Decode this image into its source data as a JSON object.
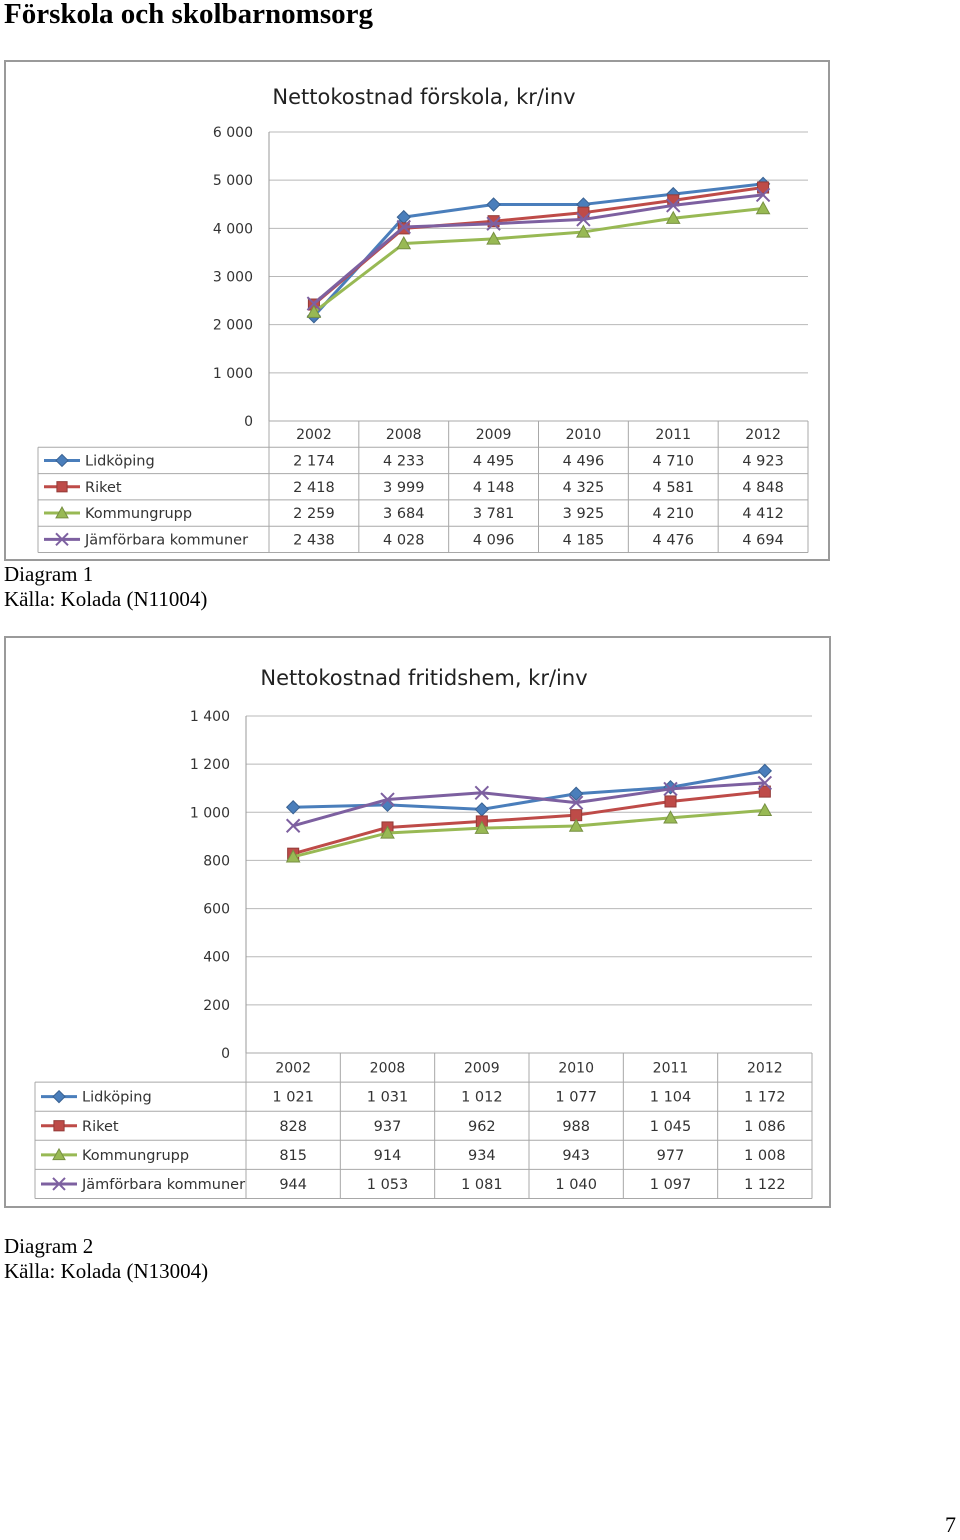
{
  "page": {
    "heading": "Förskola och skolbarnomsorg",
    "page_number": "7"
  },
  "diagram1": {
    "caption_label": "Diagram 1",
    "caption_source": "Källa: Kolada (N11004)"
  },
  "diagram2": {
    "caption_label": "Diagram 2",
    "caption_source": "Källa: Kolada (N13004)"
  },
  "chart_data": [
    {
      "type": "line",
      "title": "Nettokostnad förskola, kr/inv",
      "xlabel": "",
      "ylabel": "",
      "categories": [
        "2002",
        "2008",
        "2009",
        "2010",
        "2011",
        "2012"
      ],
      "y_ticks": [
        "0",
        "1 000",
        "2 000",
        "3 000",
        "4 000",
        "5 000",
        "6 000"
      ],
      "ylim": [
        0,
        6000
      ],
      "grid": true,
      "legend": "data-table",
      "series": [
        {
          "name": "Lidköping",
          "marker": "diamond",
          "color": "#4a7ebb",
          "values": [
            2174,
            4233,
            4495,
            4496,
            4710,
            4923
          ],
          "labels": [
            "2 174",
            "4 233",
            "4 495",
            "4 496",
            "4 710",
            "4 923"
          ]
        },
        {
          "name": "Riket",
          "marker": "square",
          "color": "#be4b48",
          "values": [
            2418,
            3999,
            4148,
            4325,
            4581,
            4848
          ],
          "labels": [
            "2 418",
            "3 999",
            "4 148",
            "4 325",
            "4 581",
            "4 848"
          ]
        },
        {
          "name": "Kommungrupp",
          "marker": "triangle",
          "color": "#98b954",
          "values": [
            2259,
            3684,
            3781,
            3925,
            4210,
            4412
          ],
          "labels": [
            "2 259",
            "3 684",
            "3 781",
            "3 925",
            "4 210",
            "4 412"
          ]
        },
        {
          "name": "Jämförbara kommuner",
          "marker": "x",
          "color": "#7d60a0",
          "values": [
            2438,
            4028,
            4096,
            4185,
            4476,
            4694
          ],
          "labels": [
            "2 438",
            "4 028",
            "4 096",
            "4 185",
            "4 476",
            "4 694"
          ]
        }
      ]
    },
    {
      "type": "line",
      "title": "Nettokostnad fritidshem, kr/inv",
      "xlabel": "",
      "ylabel": "",
      "categories": [
        "2002",
        "2008",
        "2009",
        "2010",
        "2011",
        "2012"
      ],
      "y_ticks": [
        "0",
        "200",
        "400",
        "600",
        "800",
        "1 000",
        "1 200",
        "1 400"
      ],
      "ylim": [
        0,
        1400
      ],
      "grid": true,
      "legend": "data-table",
      "series": [
        {
          "name": "Lidköping",
          "marker": "diamond",
          "color": "#4a7ebb",
          "values": [
            1021,
            1031,
            1012,
            1077,
            1104,
            1172
          ],
          "labels": [
            "1 021",
            "1 031",
            "1 012",
            "1 077",
            "1 104",
            "1 172"
          ]
        },
        {
          "name": "Riket",
          "marker": "square",
          "color": "#be4b48",
          "values": [
            828,
            937,
            962,
            988,
            1045,
            1086
          ],
          "labels": [
            "828",
            "937",
            "962",
            "988",
            "1 045",
            "1 086"
          ]
        },
        {
          "name": "Kommungrupp",
          "marker": "triangle",
          "color": "#98b954",
          "values": [
            815,
            914,
            934,
            943,
            977,
            1008
          ],
          "labels": [
            "815",
            "914",
            "934",
            "943",
            "977",
            "1 008"
          ]
        },
        {
          "name": "Jämförbara kommuner",
          "marker": "x",
          "color": "#7d60a0",
          "values": [
            944,
            1053,
            1081,
            1040,
            1097,
            1122
          ],
          "labels": [
            "944",
            "1 053",
            "1 081",
            "1 040",
            "1 097",
            "1 122"
          ]
        }
      ]
    }
  ]
}
